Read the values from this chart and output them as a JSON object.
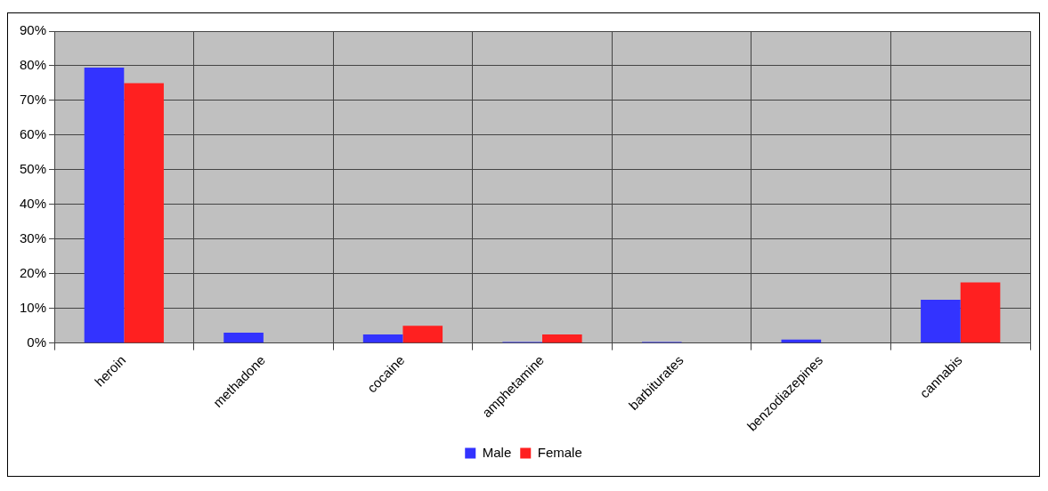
{
  "chart_data": {
    "type": "bar",
    "categories": [
      "heroin",
      "methadone",
      "cocaine",
      "amphetamine",
      "barbiturates",
      "benzodiazepines",
      "cannabis"
    ],
    "series": [
      {
        "name": "Male",
        "color": "#3333ff",
        "values": [
          79.5,
          3,
          2.5,
          0.3,
          0.3,
          1,
          12.5
        ]
      },
      {
        "name": "Female",
        "color": "#ff2020",
        "values": [
          75,
          0,
          5,
          2.5,
          0,
          0,
          17.5
        ]
      }
    ],
    "ylim": [
      0,
      90
    ],
    "yticks": [
      {
        "value": 0,
        "label": "0%"
      },
      {
        "value": 10,
        "label": "10%"
      },
      {
        "value": 20,
        "label": "20%"
      },
      {
        "value": 30,
        "label": "30%"
      },
      {
        "value": 40,
        "label": "40%"
      },
      {
        "value": 50,
        "label": "50%"
      },
      {
        "value": 60,
        "label": "60%"
      },
      {
        "value": 70,
        "label": "70%"
      },
      {
        "value": 80,
        "label": "80%"
      },
      {
        "value": 90,
        "label": "90%"
      }
    ],
    "grid": true,
    "legend": "bottom"
  }
}
